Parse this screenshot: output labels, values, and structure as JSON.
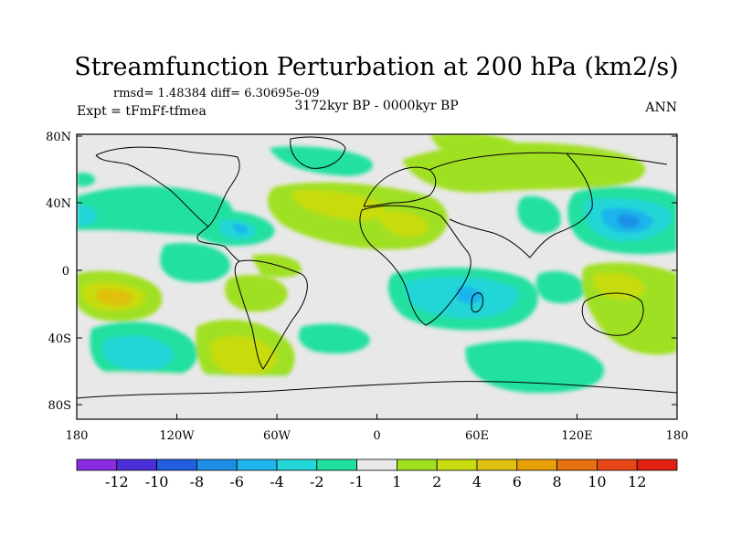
{
  "title": "Streamfunction Perturbation at 200 hPa (km2/s)",
  "stats_line": "rmsd= 1.48384 diff= 6.30695e-09",
  "experiment": "Expt = tFmFf-tfmea",
  "period": "3172kyr BP - 0000kyr BP",
  "season": "ANN",
  "lat_ticks": [
    "80N",
    "40N",
    "0",
    "40S",
    "80S"
  ],
  "lon_ticks": [
    "180",
    "120W",
    "60W",
    "0",
    "60E",
    "120E",
    "180"
  ],
  "colorbar": {
    "labels": [
      "-12",
      "-10",
      "-8",
      "-6",
      "-4",
      "-2",
      "-1",
      "1",
      "2",
      "4",
      "6",
      "8",
      "10",
      "12"
    ],
    "colors": [
      "#8a2be2",
      "#4b2fd8",
      "#1f5fe0",
      "#1e8fe6",
      "#1fb4ec",
      "#22d6d8",
      "#20e0a0",
      "#e8e8e8",
      "#a0e020",
      "#c8dc10",
      "#e0c010",
      "#e8a008",
      "#e87010",
      "#e84818",
      "#e02010"
    ]
  },
  "map_background": "#e8e8e8"
}
